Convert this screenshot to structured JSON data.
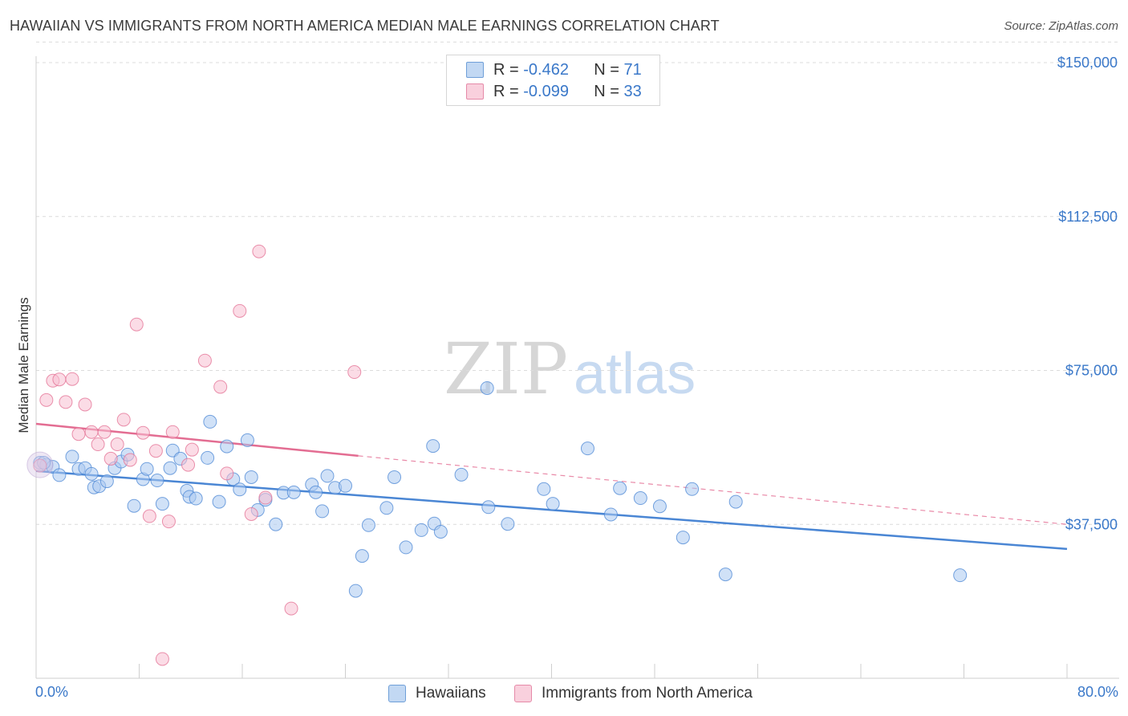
{
  "title": "HAWAIIAN VS IMMIGRANTS FROM NORTH AMERICA MEDIAN MALE EARNINGS CORRELATION CHART",
  "source": "Source: ZipAtlas.com",
  "watermark": {
    "zip": "ZIP",
    "atlas": "atlas"
  },
  "legend": {
    "rows": [
      {
        "r_label": "R = ",
        "r_value": "-0.462",
        "n_label": "N = ",
        "n_value": "71",
        "color": "#a9c8f0",
        "border": "#6f9fd8"
      },
      {
        "r_label": "R = ",
        "r_value": "-0.099",
        "n_label": "N = ",
        "n_value": "33",
        "color": "#f7bfd1",
        "border": "#e58aa8"
      }
    ]
  },
  "bottom_legend": [
    {
      "label": "Hawaiians",
      "color": "#a9c8f0",
      "border": "#6f9fd8"
    },
    {
      "label": "Immigrants from North America",
      "color": "#f7bfd1",
      "border": "#e58aa8"
    }
  ],
  "chart_data": {
    "type": "scatter",
    "xlabel": "",
    "ylabel": "Median Male Earnings",
    "xlim": [
      0,
      80
    ],
    "ylim": [
      0,
      155000
    ],
    "x_tick_labels": [
      "0.0%",
      "80.0%"
    ],
    "y_ticks": [
      {
        "value": 37500,
        "label": "$37,500"
      },
      {
        "value": 75000,
        "label": "$75,000"
      },
      {
        "value": 112500,
        "label": "$112,500"
      },
      {
        "value": 150000,
        "label": "$150,000"
      }
    ],
    "grid": true,
    "legend_position": "top-center",
    "series": [
      {
        "name": "Hawaiians",
        "color": "#4a86d4",
        "fill": "#a9c8f0",
        "trend": {
          "x": [
            0,
            80
          ],
          "y": [
            50500,
            31500
          ],
          "dashed_from": null
        },
        "points": [
          [
            0.3,
            52500
          ],
          [
            0.8,
            52000
          ],
          [
            1.3,
            51500
          ],
          [
            1.8,
            49500
          ],
          [
            2.8,
            54000
          ],
          [
            3.3,
            51000
          ],
          [
            3.8,
            51200
          ],
          [
            4.3,
            49800
          ],
          [
            4.5,
            46500
          ],
          [
            4.9,
            46800
          ],
          [
            5.5,
            48000
          ],
          [
            6.1,
            51200
          ],
          [
            6.6,
            52800
          ],
          [
            7.1,
            54500
          ],
          [
            7.6,
            42000
          ],
          [
            8.3,
            48500
          ],
          [
            8.6,
            51000
          ],
          [
            9.4,
            48200
          ],
          [
            9.8,
            42500
          ],
          [
            10.4,
            51200
          ],
          [
            10.6,
            55500
          ],
          [
            11.2,
            53500
          ],
          [
            11.7,
            45700
          ],
          [
            11.9,
            44200
          ],
          [
            12.4,
            43800
          ],
          [
            13.3,
            53700
          ],
          [
            13.5,
            62500
          ],
          [
            14.2,
            43000
          ],
          [
            14.8,
            56500
          ],
          [
            15.3,
            48500
          ],
          [
            15.8,
            46000
          ],
          [
            16.4,
            58000
          ],
          [
            16.7,
            49000
          ],
          [
            17.2,
            41000
          ],
          [
            17.8,
            43500
          ],
          [
            18.6,
            37500
          ],
          [
            19.2,
            45200
          ],
          [
            20.0,
            45300
          ],
          [
            21.4,
            47200
          ],
          [
            21.7,
            45300
          ],
          [
            22.2,
            40700
          ],
          [
            22.6,
            49300
          ],
          [
            23.2,
            46400
          ],
          [
            24.0,
            46900
          ],
          [
            25.3,
            29800
          ],
          [
            24.8,
            21300
          ],
          [
            25.8,
            37300
          ],
          [
            27.2,
            41500
          ],
          [
            27.8,
            49000
          ],
          [
            28.7,
            31900
          ],
          [
            29.9,
            36100
          ],
          [
            30.8,
            56600
          ],
          [
            30.9,
            37700
          ],
          [
            31.4,
            35700
          ],
          [
            33.0,
            49600
          ],
          [
            35.0,
            70700
          ],
          [
            35.1,
            41700
          ],
          [
            36.6,
            37600
          ],
          [
            39.4,
            46100
          ],
          [
            40.1,
            42500
          ],
          [
            42.8,
            56000
          ],
          [
            44.6,
            39900
          ],
          [
            45.3,
            46300
          ],
          [
            46.9,
            43900
          ],
          [
            48.4,
            41900
          ],
          [
            50.2,
            34300
          ],
          [
            50.9,
            46100
          ],
          [
            53.5,
            25300
          ],
          [
            54.3,
            43000
          ],
          [
            71.7,
            25100
          ],
          [
            0.6,
            52500
          ]
        ]
      },
      {
        "name": "Immigrants from North America",
        "color": "#e36d92",
        "fill": "#f7bfd1",
        "trend": {
          "x": [
            0,
            25,
            80
          ],
          "y": [
            62000,
            54200,
            37500
          ],
          "dashed_from": 25
        },
        "points": [
          [
            0.3,
            51800
          ],
          [
            0.8,
            67800
          ],
          [
            1.3,
            72500
          ],
          [
            1.8,
            72800
          ],
          [
            2.3,
            67300
          ],
          [
            2.8,
            72900
          ],
          [
            3.3,
            59500
          ],
          [
            3.8,
            66700
          ],
          [
            4.3,
            60000
          ],
          [
            4.8,
            57000
          ],
          [
            5.3,
            60000
          ],
          [
            5.8,
            53500
          ],
          [
            6.3,
            57000
          ],
          [
            6.8,
            63000
          ],
          [
            7.3,
            53200
          ],
          [
            7.8,
            86200
          ],
          [
            8.3,
            59800
          ],
          [
            8.8,
            39500
          ],
          [
            9.3,
            55400
          ],
          [
            9.8,
            4700
          ],
          [
            10.3,
            38200
          ],
          [
            10.6,
            60000
          ],
          [
            11.8,
            52000
          ],
          [
            12.1,
            55700
          ],
          [
            13.1,
            77400
          ],
          [
            14.3,
            71000
          ],
          [
            14.8,
            49900
          ],
          [
            15.8,
            89500
          ],
          [
            16.7,
            40000
          ],
          [
            17.3,
            104000
          ],
          [
            17.8,
            44000
          ],
          [
            19.8,
            17000
          ],
          [
            24.7,
            74600
          ]
        ]
      }
    ]
  }
}
